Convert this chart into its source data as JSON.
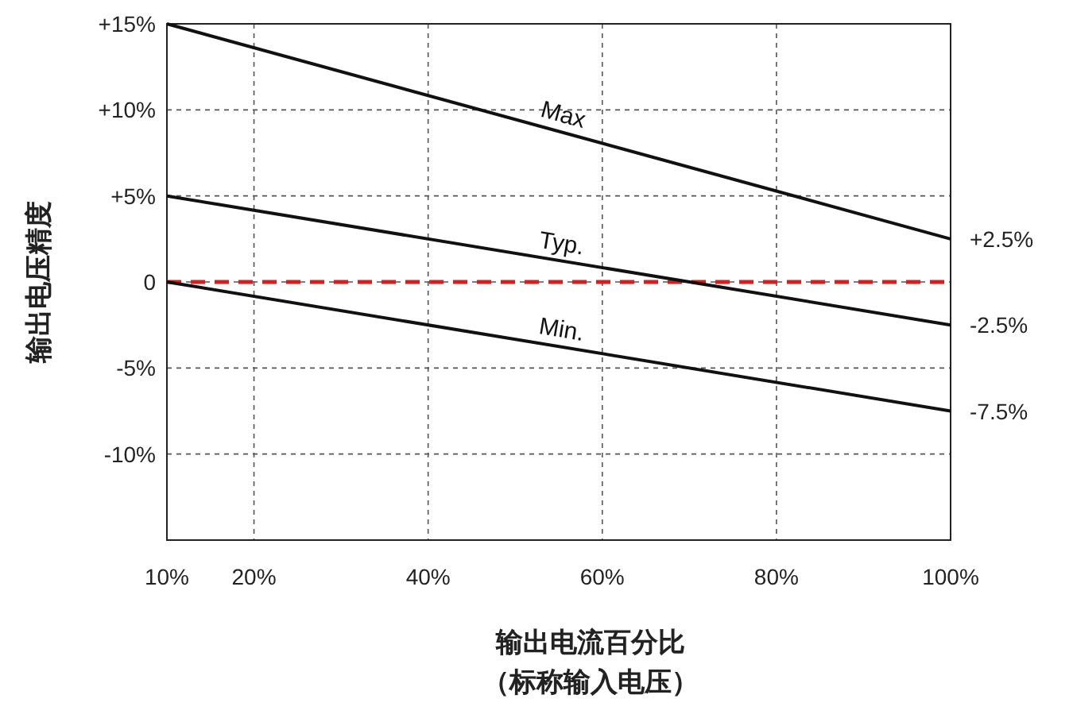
{
  "chart_data": {
    "type": "line",
    "xlabel": "输出电流百分比（标称输入电压）",
    "ylabel": "输出电压精度",
    "xlim": [
      10,
      100
    ],
    "xticks": [
      {
        "value": 10,
        "label": "10%"
      },
      {
        "value": 20,
        "label": "20%"
      },
      {
        "value": 40,
        "label": "40%"
      },
      {
        "value": 60,
        "label": "60%"
      },
      {
        "value": 80,
        "label": "80%"
      },
      {
        "value": 100,
        "label": "100%"
      }
    ],
    "ylim": [
      -15,
      15
    ],
    "yticks": [
      {
        "value": 15,
        "label": "+15%"
      },
      {
        "value": 10,
        "label": "+10%"
      },
      {
        "value": 5,
        "label": "+5%"
      },
      0,
      {
        "value": -5,
        "label": "-5%"
      },
      {
        "value": -10,
        "label": "-10%"
      }
    ],
    "grid": true,
    "line_style": "solid",
    "marker": "none",
    "legend": false,
    "series": [
      {
        "name": "Max",
        "color": "#111111",
        "values": [
          15,
          2.5
        ]
      },
      {
        "name": "Typ.",
        "color": "#111111",
        "values": [
          5,
          -2.5
        ]
      },
      {
        "name": "Min.",
        "color": "#111111",
        "values": [
          0,
          -7.5
        ]
      }
    ],
    "x": [
      10,
      100
    ],
    "ref_lines": [
      {
        "axis": "y",
        "value": 0,
        "color": "#d62020",
        "line_style": "dashed"
      }
    ],
    "annotations": [
      "+2.5%",
      "-2.5%",
      "-7.5%"
    ]
  }
}
